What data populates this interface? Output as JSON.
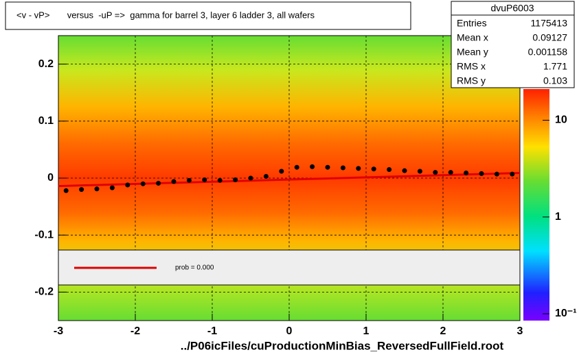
{
  "chart_data": {
    "type": "profile",
    "title": "<v - vP>       versus  -uP =>  gamma for barrel 3, layer 6 ladder 3, all wafers",
    "x_label": "../P06icFiles/cuProductionMinBias_ReversedFullField.root",
    "xlim": [
      -3,
      3
    ],
    "xticks": [
      -3,
      -2,
      -1,
      0,
      1,
      2,
      3
    ],
    "ylim": [
      -0.25,
      0.25
    ],
    "yticks": [
      -0.2,
      -0.1,
      0,
      0.1,
      0.2
    ],
    "grid": true,
    "series": [
      {
        "color": "#000000",
        "x": [
          -2.9,
          -2.7,
          -2.5,
          -2.3,
          -2.1,
          -1.9,
          -1.7,
          -1.5,
          -1.3,
          -1.1,
          -0.9,
          -0.7,
          -0.5,
          -0.3,
          -0.1,
          0.1,
          0.3,
          0.5,
          0.7,
          0.9,
          1.1,
          1.3,
          1.5,
          1.7,
          1.9,
          2.1,
          2.3,
          2.5,
          2.7,
          2.9
        ],
        "values": [
          -0.022,
          -0.02,
          -0.019,
          -0.017,
          -0.012,
          -0.01,
          -0.009,
          -0.006,
          -0.004,
          -0.003,
          -0.004,
          -0.003,
          0.0,
          0.003,
          0.012,
          0.019,
          0.02,
          0.019,
          0.018,
          0.017,
          0.016,
          0.015,
          0.013,
          0.012,
          0.01,
          0.01,
          0.009,
          0.008,
          0.007,
          0.007
        ]
      }
    ],
    "fit": {
      "color": "#e00000",
      "x": [
        -3,
        3
      ],
      "values": [
        -0.014,
        0.009
      ]
    },
    "legend_label": "prob = 0.000",
    "stats": {
      "title": "dvuP6003",
      "rows": [
        {
          "label": "Entries",
          "value": 1175413
        },
        {
          "label": "Mean x",
          "value": 0.09127
        },
        {
          "label": "Mean y",
          "value": 0.001158
        },
        {
          "label": "RMS x",
          "value": 1.771
        },
        {
          "label": "RMS y",
          "value": 0.103
        }
      ]
    },
    "zlim": [
      0.085,
      21
    ],
    "zlog": true,
    "zticks": [
      {
        "value": 0.1,
        "label": "10⁻¹"
      },
      1,
      10
    ]
  }
}
